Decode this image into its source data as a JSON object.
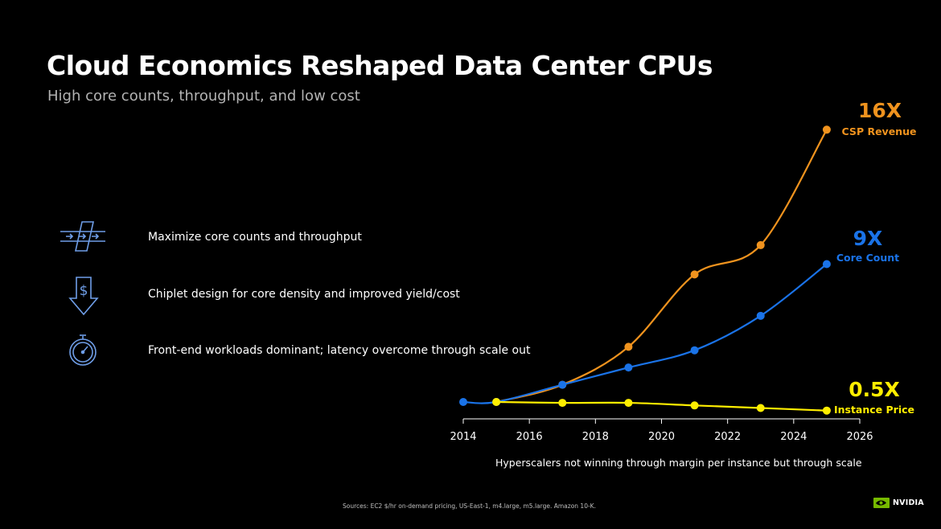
{
  "slide": {
    "title": "Cloud Economics Reshaped Data Center CPUs",
    "subtitle": "High core counts, throughput, and low cost",
    "bullets": [
      {
        "icon": "throughput-arrows-icon",
        "text": "Maximize core counts and throughput"
      },
      {
        "icon": "dollar-down-arrow-icon",
        "text": "Chiplet design for core density and improved yield/cost"
      },
      {
        "icon": "stopwatch-icon",
        "text": "Front-end workloads dominant; latency overcome through scale out"
      }
    ],
    "caption": "Hyperscalers not winning through margin per instance but through scale",
    "sources": "Sources:  EC2 $/hr on-demand pricing, US-East-1, m4.large, m5.large.  Amazon 10-K.",
    "logo_text": "NVIDIA",
    "colors": {
      "background": "#000000",
      "icon": "#6f9ee8",
      "orange": "#f0931e",
      "blue": "#1a73e8",
      "yellow": "#ffee00"
    }
  },
  "chart_data": {
    "type": "line",
    "x_ticks": [
      2014,
      2016,
      2018,
      2020,
      2022,
      2024,
      2026
    ],
    "xlim": [
      2014,
      2026
    ],
    "ylim": [
      0,
      16
    ],
    "grid": false,
    "series": [
      {
        "key": "orange",
        "color": "#f0931e",
        "big_label": "16X",
        "small_label": "CSP Revenue",
        "points": [
          [
            2015,
            0
          ],
          [
            2017,
            1.0
          ],
          [
            2019,
            3.2
          ],
          [
            2021,
            7.4
          ],
          [
            2023,
            9.1
          ],
          [
            2025,
            15.8
          ]
        ]
      },
      {
        "key": "blue",
        "color": "#1a73e8",
        "big_label": "9X",
        "small_label": "Core Count",
        "points": [
          [
            2014,
            0
          ],
          [
            2015,
            0
          ],
          [
            2017,
            1.0
          ],
          [
            2019,
            2.0
          ],
          [
            2021,
            3.0
          ],
          [
            2023,
            5.0
          ],
          [
            2025,
            8.0
          ]
        ]
      },
      {
        "key": "yellow",
        "color": "#ffee00",
        "big_label": "0.5X",
        "small_label": "Instance Price",
        "points": [
          [
            2015,
            0
          ],
          [
            2017,
            -0.05
          ],
          [
            2019,
            -0.05
          ],
          [
            2021,
            -0.2
          ],
          [
            2023,
            -0.35
          ],
          [
            2025,
            -0.5
          ]
        ]
      }
    ]
  }
}
